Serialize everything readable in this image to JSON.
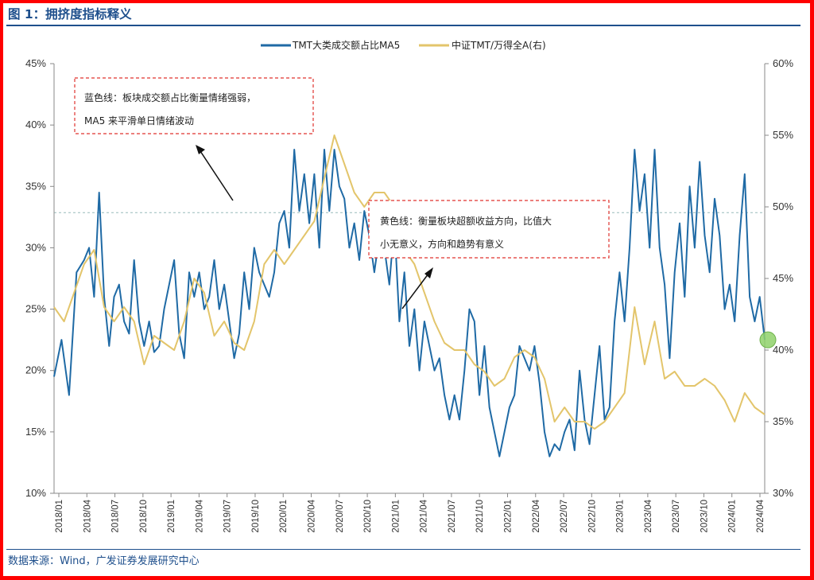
{
  "header": {
    "title": "图 1：拥挤度指标释义"
  },
  "footer": {
    "source": "数据来源：Wind，广发证券发展研究中心"
  },
  "annotations": {
    "blue_note_line1": "蓝色线：板块成交额占比衡量情绪强弱，",
    "blue_note_line2": "MA5 来平滑单日情绪波动",
    "yellow_note_line1": "黄色线：衡量板块超额收益方向，比值大",
    "yellow_note_line2": "小无意义，方向和趋势有意义"
  },
  "colors": {
    "blue": "#1f6aa5",
    "yellow": "#e3c56b",
    "note_border": "#e0332e",
    "marker": "#8fd16a"
  },
  "chart_data": {
    "type": "line",
    "legend": [
      "TMT大类成交额占比MA5",
      "中证TMT/万得全A(右)"
    ],
    "x_ticks": [
      "2018/01",
      "2018/04",
      "2018/07",
      "2018/10",
      "2019/01",
      "2019/04",
      "2019/07",
      "2019/10",
      "2020/01",
      "2020/04",
      "2020/07",
      "2020/10",
      "2021/01",
      "2021/04",
      "2021/07",
      "2021/10",
      "2022/01",
      "2022/04",
      "2022/07",
      "2022/10",
      "2023/01",
      "2023/04",
      "2023/07",
      "2023/10",
      "2024/01",
      "2024/04"
    ],
    "left_axis": {
      "min": 10,
      "max": 45,
      "ticks": [
        "10%",
        "15%",
        "20%",
        "25%",
        "30%",
        "35%",
        "40%",
        "45%"
      ]
    },
    "right_axis": {
      "min": 30,
      "max": 60,
      "ticks": [
        "30%",
        "35%",
        "40%",
        "45%",
        "50%",
        "55%",
        "60%"
      ]
    },
    "reference_line_right": 49.6,
    "series": [
      {
        "name": "TMT大类成交额占比MA5",
        "axis": "left",
        "points": [
          [
            0,
            19.5
          ],
          [
            1.5,
            22.5
          ],
          [
            3,
            18
          ],
          [
            4.5,
            28
          ],
          [
            6,
            29
          ],
          [
            7,
            30
          ],
          [
            8,
            26
          ],
          [
            9,
            34.5
          ],
          [
            10,
            26
          ],
          [
            11,
            22
          ],
          [
            12,
            26
          ],
          [
            13,
            27
          ],
          [
            14,
            24
          ],
          [
            15,
            23
          ],
          [
            16,
            29
          ],
          [
            17,
            24
          ],
          [
            18,
            22
          ],
          [
            19,
            24
          ],
          [
            20,
            21.5
          ],
          [
            21,
            22
          ],
          [
            22,
            25
          ],
          [
            23,
            27
          ],
          [
            24,
            29
          ],
          [
            25,
            23
          ],
          [
            26,
            21
          ],
          [
            27,
            28
          ],
          [
            28,
            26
          ],
          [
            29,
            28
          ],
          [
            30,
            25
          ],
          [
            31,
            26
          ],
          [
            32,
            29
          ],
          [
            33,
            25
          ],
          [
            34,
            27
          ],
          [
            35,
            24
          ],
          [
            36,
            21
          ],
          [
            37,
            23
          ],
          [
            38,
            28
          ],
          [
            39,
            25
          ],
          [
            40,
            30
          ],
          [
            41,
            28
          ],
          [
            42,
            27
          ],
          [
            43,
            26
          ],
          [
            44,
            28
          ],
          [
            45,
            32
          ],
          [
            46,
            33
          ],
          [
            47,
            30
          ],
          [
            48,
            38
          ],
          [
            49,
            33
          ],
          [
            50,
            36
          ],
          [
            51,
            32
          ],
          [
            52,
            36
          ],
          [
            53,
            30
          ],
          [
            54,
            38
          ],
          [
            55,
            33
          ],
          [
            56,
            38
          ],
          [
            57,
            35
          ],
          [
            58,
            34
          ],
          [
            59,
            30
          ],
          [
            60,
            32
          ],
          [
            61,
            29
          ],
          [
            62,
            33
          ],
          [
            63,
            31
          ],
          [
            64,
            28
          ],
          [
            65,
            31
          ],
          [
            66,
            30
          ],
          [
            67,
            27
          ],
          [
            68,
            32
          ],
          [
            69,
            24
          ],
          [
            70,
            28
          ],
          [
            71,
            22
          ],
          [
            72,
            25
          ],
          [
            73,
            20
          ],
          [
            74,
            24
          ],
          [
            75,
            22
          ],
          [
            76,
            20
          ],
          [
            77,
            21
          ],
          [
            78,
            18
          ],
          [
            79,
            16
          ],
          [
            80,
            18
          ],
          [
            81,
            16
          ],
          [
            82,
            20
          ],
          [
            83,
            25
          ],
          [
            84,
            24
          ],
          [
            85,
            18
          ],
          [
            86,
            22
          ],
          [
            87,
            17
          ],
          [
            88,
            15
          ],
          [
            89,
            13
          ],
          [
            90,
            15
          ],
          [
            91,
            17
          ],
          [
            92,
            18
          ],
          [
            93,
            22
          ],
          [
            94,
            21
          ],
          [
            95,
            20
          ],
          [
            96,
            22
          ],
          [
            97,
            19
          ],
          [
            98,
            15
          ],
          [
            99,
            13
          ],
          [
            100,
            14
          ],
          [
            101,
            13.5
          ],
          [
            102,
            15
          ],
          [
            103,
            16
          ],
          [
            104,
            13.5
          ],
          [
            105,
            20
          ],
          [
            106,
            16
          ],
          [
            107,
            14
          ],
          [
            108,
            18
          ],
          [
            109,
            22
          ],
          [
            110,
            16
          ],
          [
            111,
            17
          ],
          [
            112,
            24
          ],
          [
            113,
            28
          ],
          [
            114,
            24
          ],
          [
            115,
            30
          ],
          [
            116,
            38
          ],
          [
            117,
            33
          ],
          [
            118,
            36
          ],
          [
            119,
            30
          ],
          [
            120,
            38
          ],
          [
            121,
            30
          ],
          [
            122,
            27
          ],
          [
            123,
            21
          ],
          [
            124,
            28
          ],
          [
            125,
            32
          ],
          [
            126,
            26
          ],
          [
            127,
            35
          ],
          [
            128,
            30
          ],
          [
            129,
            37
          ],
          [
            130,
            31
          ],
          [
            131,
            28
          ],
          [
            132,
            34
          ],
          [
            133,
            31
          ],
          [
            134,
            25
          ],
          [
            135,
            27
          ],
          [
            136,
            24
          ],
          [
            137,
            31
          ],
          [
            138,
            36
          ],
          [
            139,
            26
          ],
          [
            140,
            24
          ],
          [
            141,
            26
          ],
          [
            142,
            22.5
          ]
        ]
      },
      {
        "name": "中证TMT/万得全A(右)",
        "axis": "right",
        "points": [
          [
            0,
            43
          ],
          [
            2,
            42
          ],
          [
            4,
            44
          ],
          [
            6,
            46
          ],
          [
            8,
            47
          ],
          [
            10,
            43
          ],
          [
            12,
            42
          ],
          [
            14,
            43
          ],
          [
            16,
            42
          ],
          [
            18,
            39
          ],
          [
            20,
            41
          ],
          [
            22,
            40.5
          ],
          [
            24,
            40
          ],
          [
            26,
            42
          ],
          [
            28,
            45
          ],
          [
            30,
            44
          ],
          [
            32,
            41
          ],
          [
            34,
            42
          ],
          [
            36,
            40.5
          ],
          [
            38,
            40
          ],
          [
            40,
            42
          ],
          [
            42,
            46
          ],
          [
            44,
            47
          ],
          [
            46,
            46
          ],
          [
            48,
            47
          ],
          [
            50,
            48
          ],
          [
            52,
            49
          ],
          [
            54,
            52
          ],
          [
            56,
            55
          ],
          [
            58,
            53
          ],
          [
            60,
            51
          ],
          [
            62,
            50
          ],
          [
            64,
            51
          ],
          [
            66,
            51
          ],
          [
            68,
            50
          ],
          [
            70,
            47
          ],
          [
            72,
            46
          ],
          [
            74,
            44
          ],
          [
            76,
            42
          ],
          [
            78,
            40.5
          ],
          [
            80,
            40
          ],
          [
            82,
            40
          ],
          [
            84,
            39
          ],
          [
            86,
            38.5
          ],
          [
            88,
            37.5
          ],
          [
            90,
            38
          ],
          [
            92,
            39.5
          ],
          [
            94,
            40
          ],
          [
            96,
            39.5
          ],
          [
            98,
            38
          ],
          [
            100,
            35
          ],
          [
            102,
            36
          ],
          [
            104,
            35
          ],
          [
            106,
            35
          ],
          [
            108,
            34.5
          ],
          [
            110,
            35
          ],
          [
            112,
            36
          ],
          [
            114,
            37
          ],
          [
            116,
            43
          ],
          [
            118,
            39
          ],
          [
            120,
            42
          ],
          [
            122,
            38
          ],
          [
            124,
            38.5
          ],
          [
            126,
            37.5
          ],
          [
            128,
            37.5
          ],
          [
            130,
            38
          ],
          [
            132,
            37.5
          ],
          [
            134,
            36.5
          ],
          [
            136,
            35
          ],
          [
            138,
            37
          ],
          [
            140,
            36
          ],
          [
            142,
            35.5
          ]
        ]
      }
    ],
    "marker": {
      "x": 142,
      "value": 22.5,
      "axis": "left"
    }
  }
}
